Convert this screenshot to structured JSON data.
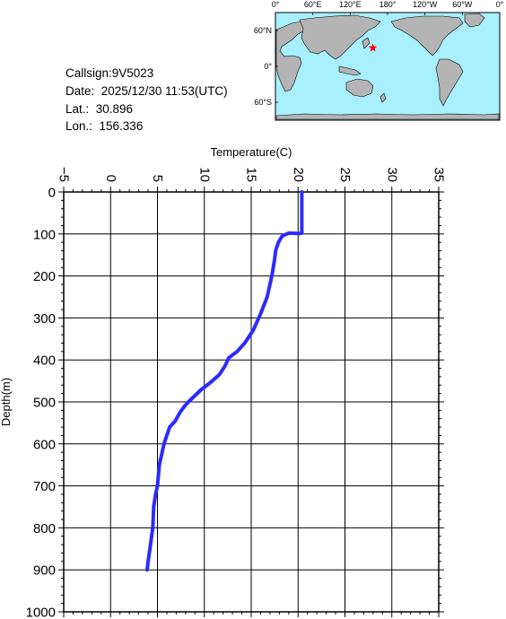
{
  "info": {
    "callsign": "Callsign:9V5023",
    "date": "Date:  2025/12/30 11:53(UTC)",
    "lat": "Lat.:  30.896",
    "lon": "Lon.:  156.336"
  },
  "map": {
    "lon_labels": [
      "0°",
      "60°E",
      "120°E",
      "180°",
      "120°W",
      "60°W",
      "0°"
    ],
    "lat_labels": [
      "60°N",
      "0°",
      "60°S"
    ],
    "ocean_color": "#a8f0ff",
    "land_color": "#b4b4b4",
    "marker": {
      "lat": 30.896,
      "lon": 156.336,
      "color": "#ff0000",
      "icon": "star-icon"
    }
  },
  "chart_data": {
    "type": "line",
    "xlabel": "Temperature(C)",
    "ylabel": "Depth(m)",
    "xlim": [
      -5,
      35
    ],
    "ylim": [
      0,
      1000
    ],
    "x_orientation": "top, rotated labels",
    "y_inverted": true,
    "grid": true,
    "xticks": [
      -5,
      0,
      5,
      10,
      15,
      20,
      25,
      30,
      35
    ],
    "yticks": [
      0,
      100,
      200,
      300,
      400,
      500,
      600,
      700,
      800,
      900,
      1000
    ],
    "line_color": "#2b2bff",
    "series": [
      {
        "x": [
          20.4,
          20.4,
          20.4,
          20.2,
          19.0,
          18.3,
          17.9,
          17.6,
          17.5,
          17.2,
          16.7,
          16.0,
          15.2,
          14.3,
          13.5,
          12.6,
          12.2,
          11.6,
          10.6,
          9.7,
          9.0,
          8.3,
          7.9,
          7.4,
          6.9,
          6.3,
          6.0,
          5.7,
          5.2,
          5.0,
          4.8,
          4.6,
          4.5,
          4.2,
          4.0,
          3.9
        ],
        "y": [
          0,
          50,
          98,
          99,
          98,
          105,
          120,
          140,
          160,
          200,
          250,
          290,
          330,
          360,
          380,
          395,
          415,
          435,
          455,
          470,
          485,
          500,
          510,
          525,
          545,
          560,
          580,
          600,
          650,
          700,
          720,
          750,
          800,
          850,
          880,
          900
        ]
      }
    ]
  }
}
